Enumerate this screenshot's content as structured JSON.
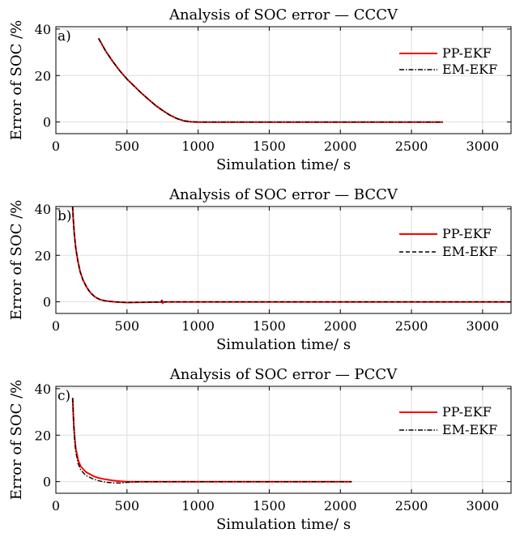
{
  "chart_data": [
    {
      "type": "line",
      "panel_label": "a)",
      "title": "Analysis of SOC error — CCCV",
      "xlabel": "Simulation time/ s",
      "ylabel": "Error of SOC /%",
      "xlim": [
        0,
        3200
      ],
      "ylim": [
        -5,
        41
      ],
      "xticks": [
        0,
        500,
        1000,
        1500,
        2000,
        2500,
        3000
      ],
      "yticks": [
        0,
        20,
        40
      ],
      "grid": true,
      "legend": "top-right",
      "series": [
        {
          "name": "PP-EKF",
          "color": "#ff0000",
          "style": "solid",
          "x": [
            300,
            350,
            400,
            450,
            500,
            550,
            600,
            650,
            700,
            750,
            800,
            850,
            900,
            950,
            1000,
            1100,
            1500,
            2000,
            2500,
            2720
          ],
          "y": [
            36,
            30.5,
            26,
            22,
            18.5,
            15.5,
            12.5,
            9.8,
            7.2,
            5,
            3,
            1.5,
            0.5,
            0.1,
            0,
            0,
            0,
            0,
            0,
            0
          ]
        },
        {
          "name": "EM-EKF",
          "color": "#000000",
          "style": "dashdot",
          "x": [
            300,
            350,
            400,
            450,
            500,
            550,
            600,
            650,
            700,
            750,
            800,
            850,
            900,
            950,
            1000,
            1100,
            1500,
            2000,
            2500,
            2720
          ],
          "y": [
            36,
            30.5,
            26,
            22,
            18.5,
            15.5,
            12.5,
            9.8,
            7.2,
            5,
            3,
            1.5,
            0.5,
            0.1,
            0,
            0,
            0,
            0,
            0,
            0
          ]
        }
      ]
    },
    {
      "type": "line",
      "panel_label": "b)",
      "title": "Analysis of SOC error — BCCV",
      "xlabel": "Simulation time/ s",
      "ylabel": "Error of SOC /%",
      "xlim": [
        0,
        3200
      ],
      "ylim": [
        -5,
        41
      ],
      "xticks": [
        0,
        500,
        1000,
        1500,
        2000,
        2500,
        3000
      ],
      "yticks": [
        0,
        20,
        40
      ],
      "grid": true,
      "legend": "top-right",
      "series": [
        {
          "name": "PP-EKF",
          "color": "#ff0000",
          "style": "solid",
          "x": [
            118,
            122,
            130,
            140,
            155,
            170,
            190,
            210,
            230,
            250,
            270,
            290,
            310,
            340,
            380,
            420,
            500,
            600,
            740,
            745,
            750,
            760,
            1000,
            2000,
            3200
          ],
          "y": [
            41,
            36,
            29,
            23,
            17.5,
            13,
            9.5,
            7,
            5,
            3.5,
            2.4,
            1.6,
            1.0,
            0.5,
            0.2,
            0,
            -0.3,
            -0.2,
            -0.1,
            0.6,
            -0.6,
            0,
            0,
            0,
            0
          ]
        },
        {
          "name": "EM-EKF",
          "color": "#000000",
          "style": "dashed",
          "x": [
            118,
            122,
            130,
            140,
            155,
            170,
            190,
            210,
            230,
            250,
            270,
            290,
            310,
            340,
            380,
            420,
            500,
            600,
            740,
            745,
            750,
            760,
            1000,
            2000,
            3200
          ],
          "y": [
            41,
            36,
            29,
            23,
            17.5,
            13,
            9.5,
            7,
            5,
            3.5,
            2.4,
            1.6,
            1.0,
            0.5,
            0.2,
            0,
            -0.3,
            -0.2,
            -0.1,
            0.6,
            -0.6,
            0,
            0,
            0,
            0
          ]
        }
      ]
    },
    {
      "type": "line",
      "panel_label": "c)",
      "title": "Analysis of SOC error — PCCV",
      "xlabel": "Simulation time/ s",
      "ylabel": "Error of SOC /%",
      "xlim": [
        0,
        3200
      ],
      "ylim": [
        -5,
        41
      ],
      "xticks": [
        0,
        500,
        1000,
        1500,
        2000,
        2500,
        3000
      ],
      "yticks": [
        0,
        20,
        40
      ],
      "grid": true,
      "legend": "top-right",
      "series": [
        {
          "name": "PP-EKF",
          "color": "#ff0000",
          "style": "solid",
          "x": [
            118,
            125,
            132,
            140,
            148,
            155,
            165,
            175,
            190,
            205,
            220,
            240,
            260,
            280,
            300,
            330,
            360,
            400,
            450,
            500,
            600,
            800,
            1000,
            1500,
            2080
          ],
          "y": [
            36,
            25,
            19,
            14,
            12,
            9.5,
            8,
            6.5,
            5.5,
            4.5,
            3.8,
            3.2,
            2.5,
            2,
            1.6,
            1.2,
            0.9,
            0.5,
            0.2,
            0,
            0,
            0,
            0,
            0,
            0
          ]
        },
        {
          "name": "EM-EKF",
          "color": "#000000",
          "style": "dashdot",
          "x": [
            118,
            125,
            132,
            140,
            148,
            155,
            165,
            175,
            190,
            205,
            220,
            240,
            260,
            280,
            300,
            330,
            360,
            400,
            450,
            500,
            600,
            800,
            1000,
            1500,
            2080
          ],
          "y": [
            36,
            24,
            17.5,
            12.5,
            10.5,
            8,
            6.5,
            5,
            4,
            3,
            2.4,
            1.8,
            1.2,
            0.8,
            0.4,
            0,
            -0.3,
            -0.5,
            -0.6,
            -0.3,
            0,
            0,
            0,
            0,
            0
          ]
        }
      ]
    }
  ]
}
